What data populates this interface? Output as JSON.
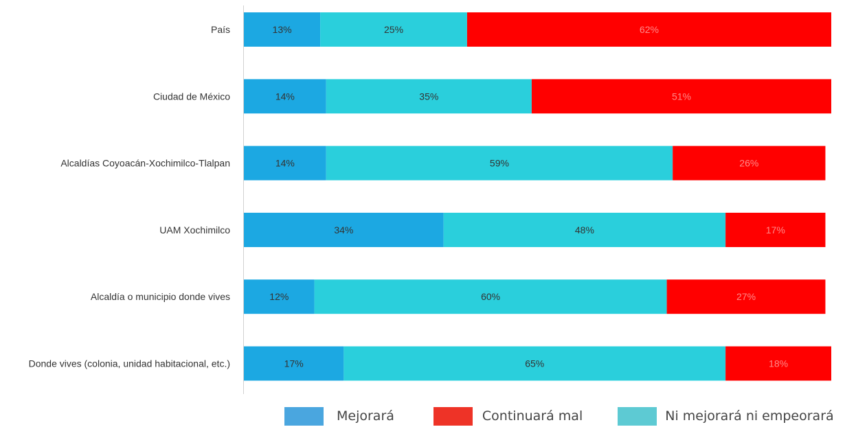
{
  "chart_data": {
    "type": "bar",
    "orientation": "horizontal",
    "stacked": true,
    "categories": [
      "País",
      "Ciudad de México",
      "Alcaldías Coyoacán-Xochimilco-Tlalpan",
      "UAM Xochimilco",
      "Alcaldía o municipio donde vives",
      "Donde vives (colonia, unidad habitacional, etc.)"
    ],
    "series": [
      {
        "name": "Mejorará",
        "color": "#1ca8e2",
        "values": [
          13,
          14,
          14,
          34,
          12,
          17
        ],
        "labels": [
          "13%",
          "14%",
          "14%",
          "34%",
          "12%",
          "17%"
        ]
      },
      {
        "name": "Ni mejorará ni empeorará",
        "color": "#2acfdc",
        "values": [
          25,
          35,
          59,
          48,
          60,
          65
        ],
        "labels": [
          "25%",
          "35%",
          "59%",
          "48%",
          "60%",
          "65%"
        ]
      },
      {
        "name": "Continuará mal",
        "color": "#ff0000",
        "values": [
          62,
          51,
          26,
          17,
          27,
          18
        ],
        "labels": [
          "62%",
          "51%",
          "26%",
          "17%",
          "27%",
          "18%"
        ]
      }
    ],
    "xlim": [
      0,
      100
    ],
    "grid": false,
    "legend": {
      "position": "bottom-right",
      "items": [
        {
          "name": "Mejorará",
          "color": "#4aa6df"
        },
        {
          "name": "Continuará mal",
          "color": "#ee3327"
        },
        {
          "name": "Ni mejorará ni empeorará",
          "color": "#5dcad3"
        }
      ]
    }
  }
}
